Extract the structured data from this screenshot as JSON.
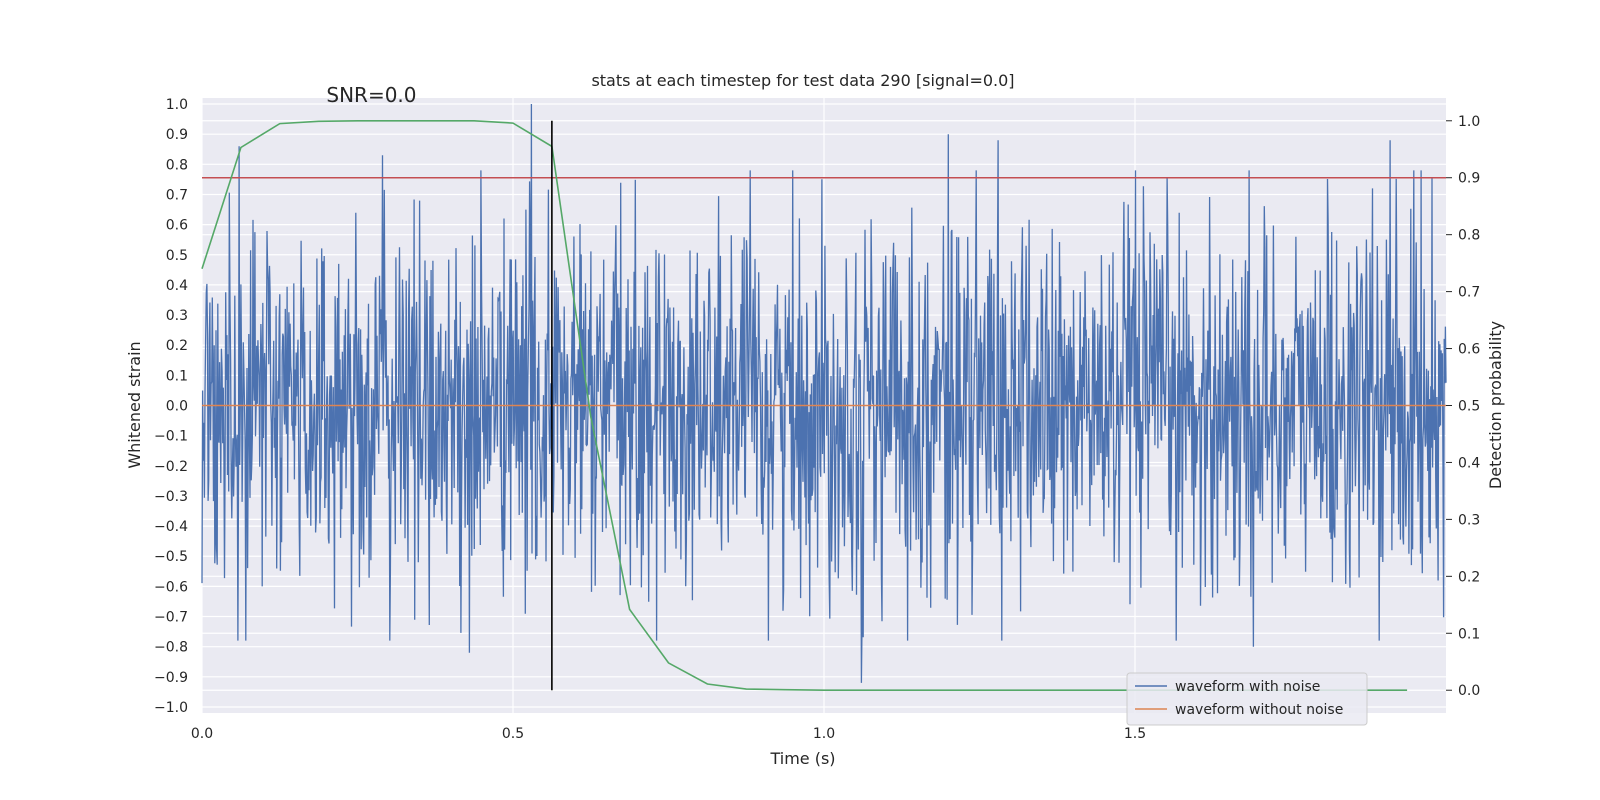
{
  "chart_data": {
    "type": "line",
    "title": "stats at each timestep for test data 290 [signal=0.0]",
    "xlabel": "Time (s)",
    "ylabel": "Whitened strain",
    "y2label": "Detection probability",
    "xlim": [
      0.0,
      2.0
    ],
    "ylim": [
      -1.02,
      1.02
    ],
    "y2lim": [
      -0.04,
      1.04
    ],
    "x_ticks": [
      0.0,
      0.5,
      1.0,
      1.5
    ],
    "x_tick_labels": [
      "0.0",
      "0.5",
      "1.0",
      "1.5"
    ],
    "y_ticks": [
      1.0,
      0.9,
      0.8,
      0.7,
      0.6,
      0.5,
      0.4,
      0.3,
      0.2,
      0.1,
      0.0,
      -0.1,
      -0.2,
      -0.3,
      -0.4,
      -0.5,
      -0.6,
      -0.7,
      -0.8,
      -0.9,
      -1.0
    ],
    "y_tick_labels": [
      "1.0",
      "0.9",
      "0.8",
      "0.7",
      "0.6",
      "0.5",
      "0.4",
      "0.3",
      "0.2",
      "0.1",
      "0.0",
      "−0.1",
      "−0.2",
      "−0.3",
      "−0.4",
      "−0.5",
      "−0.6",
      "−0.7",
      "−0.8",
      "−0.9",
      "−1.0"
    ],
    "y2_ticks": [
      1.0,
      0.9,
      0.8,
      0.7,
      0.6,
      0.5,
      0.4,
      0.3,
      0.2,
      0.1,
      0.0
    ],
    "y2_tick_labels": [
      "1.0",
      "0.9",
      "0.8",
      "0.7",
      "0.6",
      "0.5",
      "0.4",
      "0.3",
      "0.2",
      "0.1",
      "0.0"
    ],
    "grid": true,
    "annotation": {
      "text": "SNR=0.0",
      "x": 0.2,
      "y": 1.0
    },
    "threshold": {
      "axis": "y2",
      "value": 0.9,
      "color": "#c44e52"
    },
    "vertical_line": {
      "x": 0.5625,
      "color": "#000000",
      "y2_range": [
        0.0,
        1.0
      ]
    },
    "series": [
      {
        "name": "waveform with noise",
        "axis": "y",
        "color": "#4c72b0",
        "style": "dense-noise",
        "samples": 2048,
        "x_range": [
          0.0,
          2.0
        ],
        "amplitude_sigma": 0.3,
        "peaks": [
          {
            "x": 0.53,
            "y": 1.0
          },
          {
            "x": 0.06,
            "y": 0.86
          },
          {
            "x": 1.2,
            "y": 0.9
          },
          {
            "x": 1.28,
            "y": 0.88
          },
          {
            "x": 1.91,
            "y": 0.88
          },
          {
            "x": 0.29,
            "y": 0.83
          },
          {
            "x": 1.06,
            "y": -0.92
          },
          {
            "x": 0.43,
            "y": -0.82
          },
          {
            "x": 1.69,
            "y": -0.8
          }
        ]
      },
      {
        "name": "waveform without noise",
        "axis": "y",
        "color": "#dd8452",
        "x": [
          0.0,
          2.0
        ],
        "y": [
          0.0,
          0.0
        ]
      },
      {
        "name": "detection probability",
        "axis": "y2",
        "color": "#55a868",
        "x": [
          0.0,
          0.0625,
          0.125,
          0.1875,
          0.25,
          0.3125,
          0.375,
          0.4375,
          0.5,
          0.5625,
          0.625,
          0.6875,
          0.75,
          0.8125,
          0.875,
          0.9375,
          1.0,
          1.0625,
          1.125,
          1.1875,
          1.25,
          1.3125,
          1.375,
          1.4375,
          1.5,
          1.5625,
          1.625,
          1.6875,
          1.75,
          1.8125,
          1.875,
          1.9375
        ],
        "y": [
          0.74,
          0.953,
          0.995,
          0.999,
          1.0,
          1.0,
          1.0,
          1.0,
          0.996,
          0.955,
          0.48,
          0.142,
          0.048,
          0.011,
          0.002,
          0.001,
          0.0,
          0.0,
          0.0,
          0.0,
          0.0,
          0.0,
          0.0,
          0.0,
          0.0,
          0.0,
          0.0,
          0.0,
          0.0,
          0.0,
          0.0,
          0.0
        ]
      }
    ],
    "legend": {
      "position": "lower-right",
      "entries": [
        {
          "label": "waveform with noise",
          "color": "#4c72b0"
        },
        {
          "label": "waveform without noise",
          "color": "#dd8452"
        }
      ]
    },
    "colors": {
      "plot_background": "#eaeaf2",
      "grid": "#ffffff",
      "text": "#262626"
    }
  }
}
